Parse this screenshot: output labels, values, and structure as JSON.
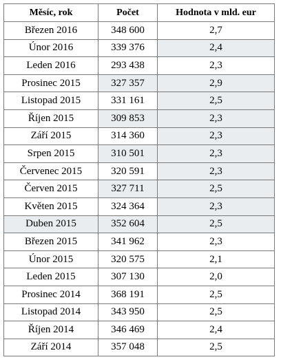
{
  "table": {
    "headers": [
      "Měsíc, rok",
      "Počet",
      "Hodnota v mld. eur"
    ],
    "rows": [
      {
        "month": "Březen 2016",
        "count": "348 600",
        "value": "2,7",
        "shade": [
          false,
          false,
          false
        ]
      },
      {
        "month": "Únor 2016",
        "count": "339 376",
        "value": "2,4",
        "shade": [
          false,
          false,
          true
        ]
      },
      {
        "month": "Leden 2016",
        "count": "293 438",
        "value": "2,3",
        "shade": [
          false,
          false,
          false
        ]
      },
      {
        "month": "Prosinec 2015",
        "count": "327 357",
        "value": "2,9",
        "shade": [
          false,
          true,
          true
        ]
      },
      {
        "month": "Listopad 2015",
        "count": "331 161",
        "value": "2,5",
        "shade": [
          false,
          false,
          true
        ]
      },
      {
        "month": "Říjen 2015",
        "count": "309 853",
        "value": "2,3",
        "shade": [
          false,
          true,
          true
        ]
      },
      {
        "month": "Září 2015",
        "count": "314 360",
        "value": "2,3",
        "shade": [
          false,
          false,
          true
        ]
      },
      {
        "month": "Srpen 2015",
        "count": "310 501",
        "value": "2,3",
        "shade": [
          false,
          true,
          true
        ]
      },
      {
        "month": "Červenec 2015",
        "count": "320 591",
        "value": "2,3",
        "shade": [
          false,
          false,
          true
        ]
      },
      {
        "month": "Červen 2015",
        "count": "327 711",
        "value": "2,5",
        "shade": [
          false,
          true,
          true
        ]
      },
      {
        "month": "Květen 2015",
        "count": "324 364",
        "value": "2,3",
        "shade": [
          false,
          false,
          true
        ]
      },
      {
        "month": "Duben 2015",
        "count": "352 604",
        "value": "2,5",
        "shade": [
          true,
          true,
          true
        ]
      },
      {
        "month": "Březen 2015",
        "count": "341 962",
        "value": "2,3",
        "shade": [
          false,
          false,
          false
        ]
      },
      {
        "month": "Únor 2015",
        "count": "320 575",
        "value": "2,1",
        "shade": [
          false,
          false,
          false
        ]
      },
      {
        "month": "Leden 2015",
        "count": "307 130",
        "value": "2,0",
        "shade": [
          false,
          false,
          false
        ]
      },
      {
        "month": "Prosinec 2014",
        "count": "368 191",
        "value": "2,5",
        "shade": [
          false,
          false,
          false
        ]
      },
      {
        "month": "Listopad 2014",
        "count": "343 950",
        "value": "2,5",
        "shade": [
          false,
          false,
          false
        ]
      },
      {
        "month": "Říjen 2014",
        "count": "346 469",
        "value": "2,4",
        "shade": [
          false,
          false,
          false
        ]
      },
      {
        "month": "Září 2014",
        "count": "357 048",
        "value": "2,5",
        "shade": [
          false,
          false,
          false
        ]
      }
    ]
  }
}
